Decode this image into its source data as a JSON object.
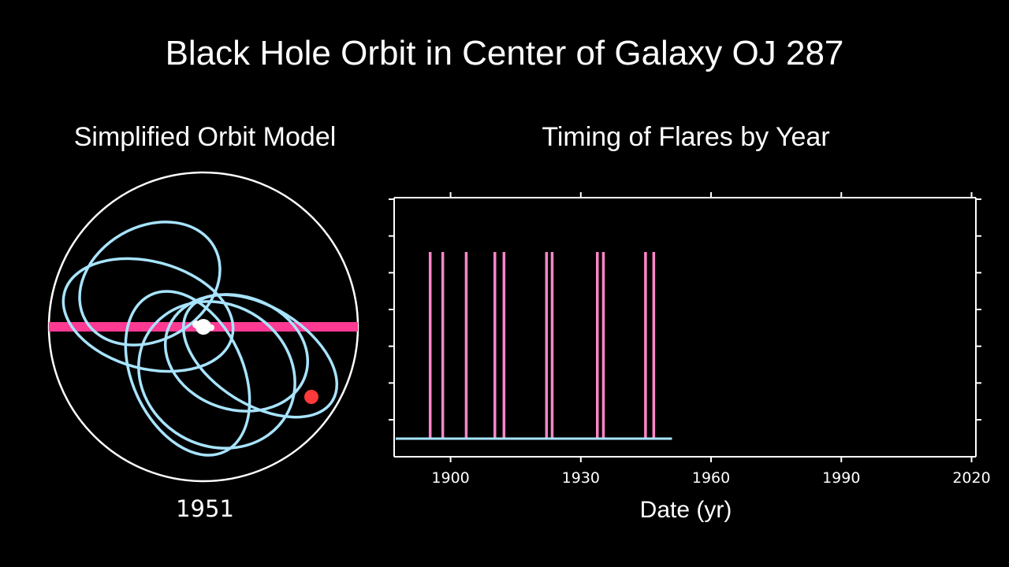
{
  "title": "Black Hole Orbit in Center of Galaxy OJ 287",
  "orbit_panel": {
    "title": "Simplified Orbit Model",
    "year": "1951",
    "colors": {
      "orbit": "#a8e4ff",
      "disk": "#ff3a93",
      "central": "#ffffff",
      "companion": "#ff3a3a",
      "circle": "#ffffff"
    }
  },
  "chart_data": {
    "type": "bar",
    "title": "Timing of Flares by Year",
    "xlabel": "Date (yr)",
    "ylabel": "",
    "xlim": [
      1887,
      2021
    ],
    "xticks": [
      1900,
      1930,
      1960,
      1990,
      2020
    ],
    "xtick_labels": [
      "1900",
      "1930",
      "1960",
      "1990",
      "2020"
    ],
    "yticks_count": 7,
    "flare_years": [
      1895.3,
      1898.2,
      1903.6,
      1910.2,
      1912.3,
      1922.1,
      1923.4,
      1933.8,
      1935.2,
      1944.9,
      1946.8
    ],
    "baseline_end_year": 1951,
    "colors": {
      "flare": "#ff85c8",
      "baseline": "#a8e4ff",
      "axes": "#ffffff"
    }
  }
}
